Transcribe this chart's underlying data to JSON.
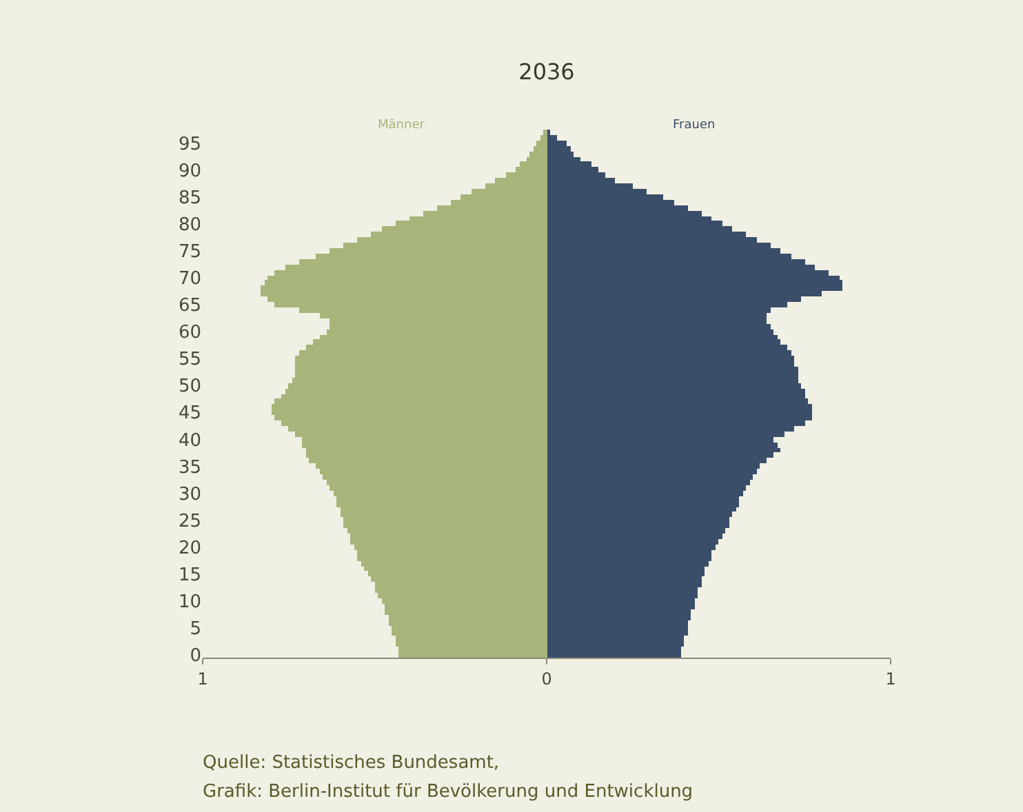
{
  "chart_data": {
    "type": "bar",
    "orientation": "horizontal",
    "title": "2036",
    "categories": [
      null,
      null,
      "95",
      null,
      null,
      null,
      null,
      "90",
      null,
      null,
      null,
      null,
      "85",
      null,
      null,
      null,
      null,
      "80",
      null,
      null,
      null,
      null,
      "75",
      null,
      null,
      null,
      null,
      "70",
      null,
      null,
      null,
      null,
      "65",
      null,
      null,
      null,
      null,
      "60",
      null,
      null,
      null,
      null,
      "55",
      null,
      null,
      null,
      null,
      "50",
      null,
      null,
      null,
      null,
      "45",
      null,
      null,
      null,
      null,
      "40",
      null,
      null,
      null,
      null,
      "35",
      null,
      null,
      null,
      null,
      "30",
      null,
      null,
      null,
      null,
      "25",
      null,
      null,
      null,
      null,
      "20",
      null,
      null,
      null,
      null,
      "15",
      null,
      null,
      null,
      null,
      "10",
      null,
      null,
      null,
      null,
      "5",
      null,
      null,
      null,
      null,
      "0"
    ],
    "series": [
      {
        "name": "Männer",
        "color": "#a7b57a",
        "values": [
          -0.01,
          -0.02,
          -0.03,
          -0.04,
          -0.05,
          -0.06,
          -0.08,
          -0.09,
          -0.12,
          -0.15,
          -0.18,
          -0.22,
          -0.25,
          -0.28,
          -0.32,
          -0.36,
          -0.4,
          -0.44,
          -0.48,
          -0.51,
          -0.55,
          -0.59,
          -0.63,
          -0.67,
          -0.72,
          -0.76,
          -0.79,
          -0.81,
          -0.82,
          -0.83,
          -0.83,
          -0.81,
          -0.79,
          -0.72,
          -0.66,
          -0.63,
          -0.63,
          -0.64,
          -0.66,
          -0.68,
          -0.7,
          -0.72,
          -0.73,
          -0.73,
          -0.73,
          -0.73,
          -0.74,
          -0.75,
          -0.76,
          -0.77,
          -0.79,
          -0.8,
          -0.8,
          -0.79,
          -0.77,
          -0.75,
          -0.73,
          -0.71,
          -0.71,
          -0.7,
          -0.7,
          -0.69,
          -0.67,
          -0.66,
          -0.65,
          -0.64,
          -0.63,
          -0.62,
          -0.61,
          -0.61,
          -0.6,
          -0.6,
          -0.59,
          -0.59,
          -0.58,
          -0.57,
          -0.57,
          -0.56,
          -0.55,
          -0.55,
          -0.54,
          -0.53,
          -0.52,
          -0.51,
          -0.5,
          -0.5,
          -0.49,
          -0.48,
          -0.47,
          -0.47,
          -0.46,
          -0.46,
          -0.45,
          -0.45,
          -0.44,
          -0.44,
          -0.43,
          -0.43
        ]
      },
      {
        "name": "Frauen",
        "color": "#3b4e69",
        "values": [
          0.01,
          0.03,
          0.06,
          0.07,
          0.08,
          0.1,
          0.13,
          0.15,
          0.17,
          0.2,
          0.25,
          0.29,
          0.34,
          0.37,
          0.41,
          0.45,
          0.48,
          0.51,
          0.54,
          0.58,
          0.61,
          0.65,
          0.68,
          0.71,
          0.75,
          0.78,
          0.82,
          0.85,
          0.86,
          0.86,
          0.8,
          0.74,
          0.7,
          0.65,
          0.64,
          0.64,
          0.65,
          0.66,
          0.67,
          0.68,
          0.7,
          0.71,
          0.72,
          0.72,
          0.73,
          0.73,
          0.73,
          0.74,
          0.75,
          0.75,
          0.76,
          0.77,
          0.77,
          0.77,
          0.75,
          0.72,
          0.69,
          0.66,
          0.67,
          0.68,
          0.66,
          0.64,
          0.62,
          0.61,
          0.6,
          0.59,
          0.58,
          0.57,
          0.56,
          0.56,
          0.55,
          0.54,
          0.53,
          0.53,
          0.52,
          0.51,
          0.5,
          0.49,
          0.48,
          0.48,
          0.47,
          0.46,
          0.46,
          0.45,
          0.45,
          0.44,
          0.44,
          0.43,
          0.43,
          0.42,
          0.42,
          0.41,
          0.41,
          0.41,
          0.4,
          0.4,
          0.39,
          0.39
        ]
      }
    ],
    "stacked": true,
    "xlim": [
      -1,
      1
    ],
    "xticks": [
      {
        "value": -1,
        "label": "1"
      },
      0,
      1
    ],
    "grid": false,
    "legend": false,
    "annotations": [
      "Quelle: Statistisches Bundesamt,",
      "Grafik: Berlin-Institut für Bevölkerung und Entwicklung"
    ]
  }
}
